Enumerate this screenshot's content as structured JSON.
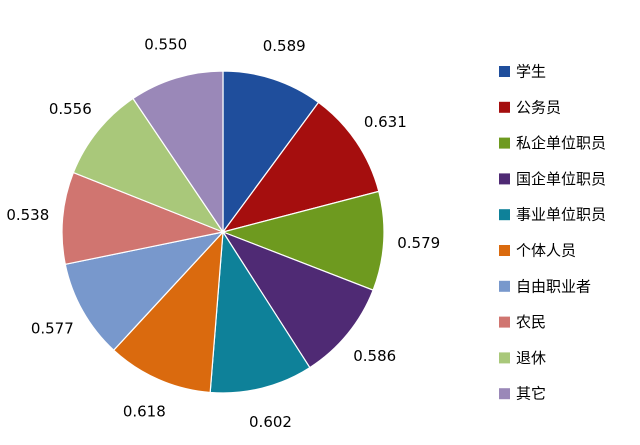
{
  "chart_data": {
    "type": "pie",
    "title": "",
    "categories": [
      "学生",
      "公务员",
      "私企单位职员",
      "国企单位职员",
      "事业单位职员",
      "个体人员",
      "自由职业者",
      "农民",
      "退休",
      "其它"
    ],
    "values": [
      0.589,
      0.631,
      0.579,
      0.586,
      0.602,
      0.618,
      0.577,
      0.538,
      0.556,
      0.55
    ],
    "colors": [
      "#1F4E9C",
      "#A50E0E",
      "#6E9A1F",
      "#4F2A74",
      "#0E8199",
      "#DA6A0E",
      "#7898CC",
      "#D07570",
      "#A9C87A",
      "#9A88B8"
    ],
    "start_angle_deg": 0,
    "direction": "clockwise",
    "legend_position": "right"
  }
}
